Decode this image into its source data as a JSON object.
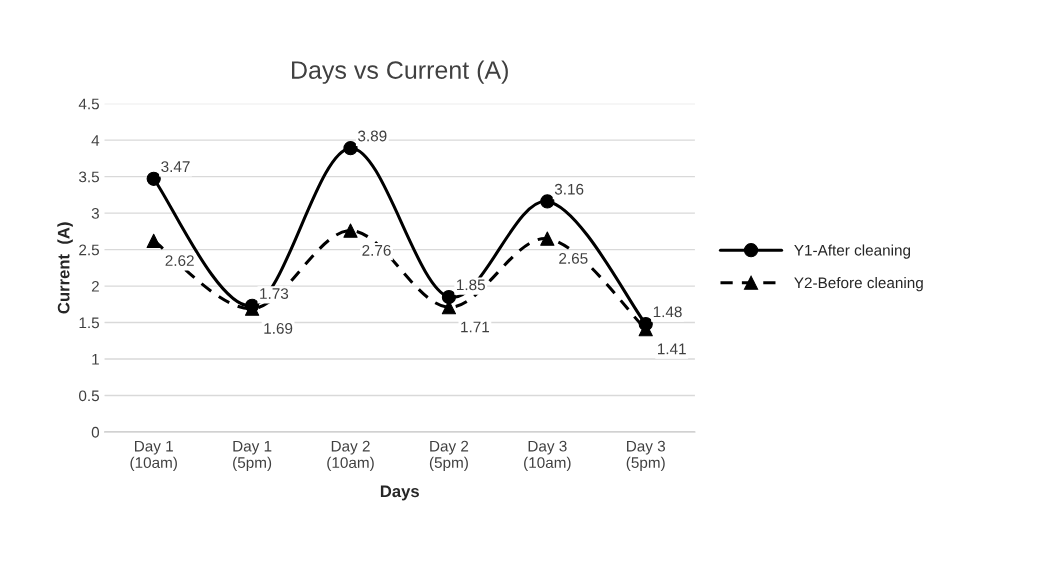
{
  "chart_data": {
    "type": "line",
    "title": "Days vs Current (A)",
    "xlabel": "Days",
    "ylabel": "Current  (A)",
    "categories": [
      "Day 1\n(10am)",
      "Day 1\n(5pm)",
      "Day 2\n(10am)",
      "Day 2\n(5pm)",
      "Day 3\n(10am)",
      "Day 3\n(5pm)"
    ],
    "series": [
      {
        "name": "Y1-After cleaning",
        "color": "#000000",
        "values": [
          3.47,
          1.73,
          3.89,
          1.85,
          3.16,
          1.48
        ],
        "marker": "circle",
        "line_style": "solid"
      },
      {
        "name": "Y2-Before cleaning",
        "color": "#000000",
        "values": [
          2.62,
          1.69,
          2.76,
          1.71,
          2.65,
          1.41
        ],
        "marker": "triangle",
        "line_style": "dashed"
      }
    ],
    "ylim": [
      0,
      4.5
    ],
    "yticks": [
      0,
      0.5,
      1,
      1.5,
      2,
      2.5,
      3,
      3.5,
      4,
      4.5
    ],
    "grid": "y",
    "legend": "right",
    "data_labels": true
  }
}
